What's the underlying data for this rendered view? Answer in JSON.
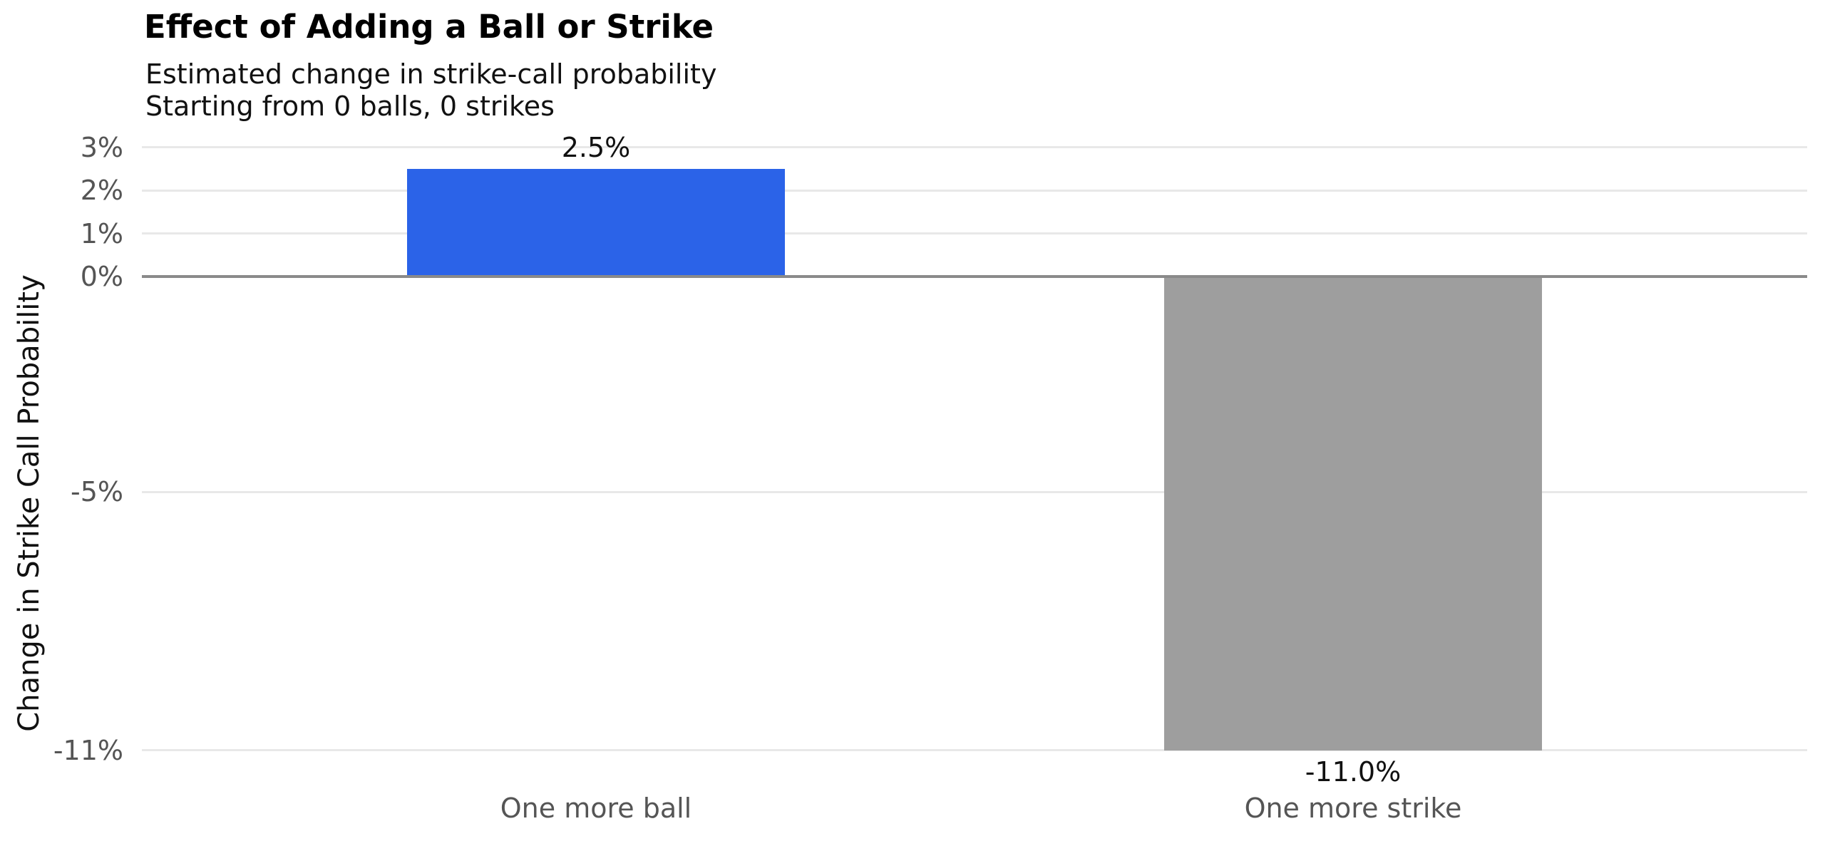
{
  "chart_data": {
    "type": "bar",
    "title": "Effect of Adding a Ball or Strike",
    "subtitle_lines": [
      "Estimated change in strike-call probability",
      "Starting from 0 balls, 0 strikes"
    ],
    "categories": [
      "One more ball",
      "One more strike"
    ],
    "values": [
      2.5,
      -11.0
    ],
    "bar_labels": [
      "2.5%",
      "-11.0%"
    ],
    "bar_colors": [
      "#2b63e8",
      "#9e9e9e"
    ],
    "xlabel": "",
    "ylabel": "Change in Strike Call Probability",
    "yticks": [
      3,
      2,
      1,
      0,
      -5,
      -11
    ],
    "ytick_labels": [
      "3%",
      "2%",
      "1%",
      "0%",
      "-5%",
      "-11%"
    ],
    "ylim": [
      -12.2,
      3.3
    ],
    "grid": true,
    "legend": "none",
    "gridline_color": "#e8e8e8",
    "zero_line_color": "#8a8a8a",
    "tick_label_color": "#555555",
    "value_label_color": "#111111"
  }
}
